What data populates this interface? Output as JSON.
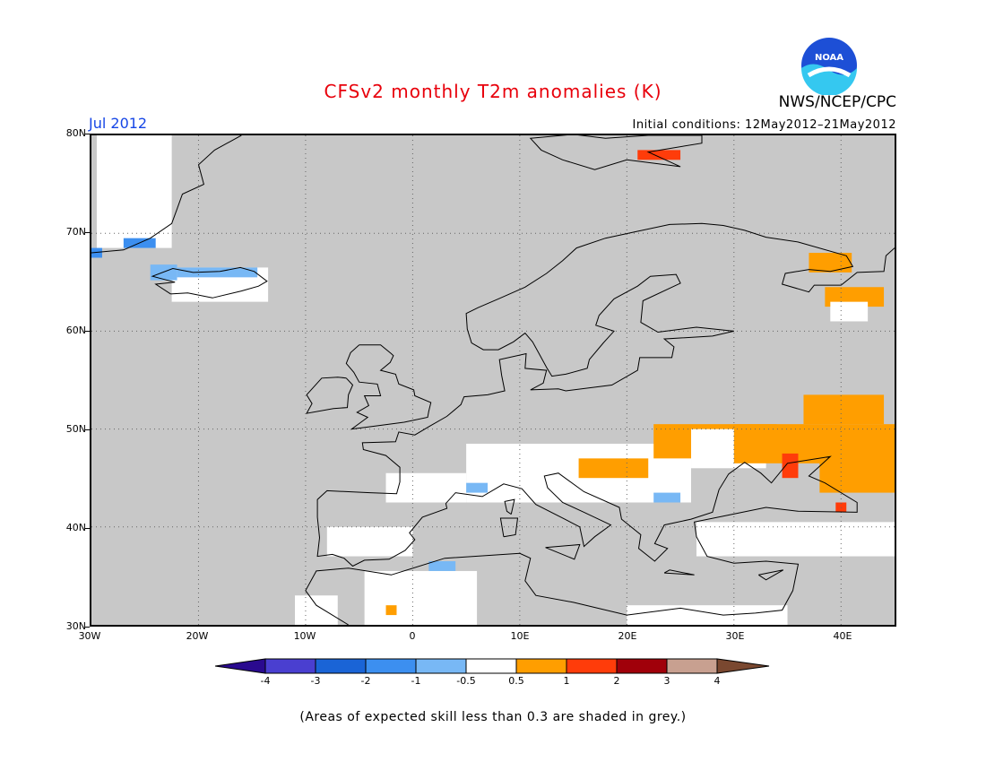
{
  "title": "CFSv2 monthly T2m anomalies (K)",
  "agency": "NWS/NCEP/CPC",
  "logo_text": "NOAA",
  "period": "Jul 2012",
  "initial_conditions": "Initial conditions: 12May2012–21May2012",
  "lat_labels": [
    "80N",
    "70N",
    "60N",
    "50N",
    "40N",
    "30N"
  ],
  "lon_labels": [
    "30W",
    "20W",
    "10W",
    "0",
    "10E",
    "20E",
    "30E",
    "40E"
  ],
  "colorbar": {
    "labels": [
      "-4",
      "-3",
      "-2",
      "-1",
      "-0.5",
      "0.5",
      "1",
      "2",
      "3",
      "4"
    ],
    "colors": [
      "#2a0a8f",
      "#4a3fd0",
      "#1a64d6",
      "#3c8ff0",
      "#78b8f5",
      "#ffffff",
      "#ff9e00",
      "#ff3c0a",
      "#a0000a",
      "#c8a090",
      "#7a4830"
    ]
  },
  "footnote": "(Areas of expected skill less than 0.3 are shaded in grey.)",
  "colors": {
    "skill_grey": "#c8c8c8",
    "neutral": "#ffffff",
    "warm1": "#ff9e00",
    "warm2": "#ff3c0a",
    "cool1": "#78b8f5",
    "cool2": "#3c8ff0"
  },
  "map_extent": {
    "lon": [
      -30,
      45
    ],
    "lat": [
      30,
      80
    ]
  },
  "anomaly_regions": [
    {
      "category": "neutral",
      "lon": [
        -22.5,
        -13.5
      ],
      "lat": [
        63.0,
        66.5
      ]
    },
    {
      "category": "cool1",
      "lon": [
        -22.0,
        -14.5
      ],
      "lat": [
        65.5,
        66.5
      ]
    },
    {
      "category": "cool1",
      "lon": [
        -24.5,
        -22.0
      ],
      "lat": [
        65.2,
        66.8
      ]
    },
    {
      "category": "neutral",
      "lon": [
        -29.5,
        -22.5
      ],
      "lat": [
        68.5,
        80.0
      ]
    },
    {
      "category": "cool2",
      "lon": [
        -27.0,
        -24.0
      ],
      "lat": [
        68.5,
        69.5
      ]
    },
    {
      "category": "cool2",
      "lon": [
        -30.0,
        -29.0
      ],
      "lat": [
        67.5,
        68.5
      ]
    },
    {
      "category": "warm2",
      "lon": [
        21.0,
        25.0
      ],
      "lat": [
        77.5,
        78.5
      ]
    },
    {
      "category": "warm1",
      "lon": [
        37.0,
        41.0
      ],
      "lat": [
        66.0,
        68.0
      ]
    },
    {
      "category": "warm1",
      "lon": [
        38.5,
        44.0
      ],
      "lat": [
        62.5,
        64.5
      ]
    },
    {
      "category": "neutral",
      "lon": [
        39.0,
        42.5
      ],
      "lat": [
        61.0,
        63.0
      ]
    },
    {
      "category": "neutral",
      "lon": [
        5.0,
        26.0
      ],
      "lat": [
        42.5,
        48.5
      ]
    },
    {
      "category": "neutral",
      "lon": [
        -2.5,
        5.0
      ],
      "lat": [
        42.5,
        45.5
      ]
    },
    {
      "category": "warm1",
      "lon": [
        15.5,
        22.0
      ],
      "lat": [
        45.0,
        47.0
      ]
    },
    {
      "category": "warm1",
      "lon": [
        22.5,
        34.0
      ],
      "lat": [
        47.0,
        50.5
      ]
    },
    {
      "category": "neutral",
      "lon": [
        26.0,
        33.0
      ],
      "lat": [
        46.0,
        50.0
      ]
    },
    {
      "category": "warm1",
      "lon": [
        30.0,
        45.0
      ],
      "lat": [
        46.5,
        50.5
      ]
    },
    {
      "category": "warm1",
      "lon": [
        36.5,
        44.0
      ],
      "lat": [
        50.5,
        53.5
      ]
    },
    {
      "category": "warm1",
      "lon": [
        38.0,
        45.0
      ],
      "lat": [
        43.5,
        47.5
      ]
    },
    {
      "category": "warm2",
      "lon": [
        34.5,
        36.0
      ],
      "lat": [
        45.0,
        47.5
      ]
    },
    {
      "category": "warm2",
      "lon": [
        39.5,
        40.5
      ],
      "lat": [
        41.5,
        42.5
      ]
    },
    {
      "category": "cool1",
      "lon": [
        22.5,
        25.0
      ],
      "lat": [
        42.5,
        43.5
      ]
    },
    {
      "category": "cool1",
      "lon": [
        5.0,
        7.0
      ],
      "lat": [
        43.5,
        44.5
      ]
    },
    {
      "category": "neutral",
      "lon": [
        -4.5,
        6.0
      ],
      "lat": [
        30.0,
        35.5
      ]
    },
    {
      "category": "cool1",
      "lon": [
        1.5,
        4.0
      ],
      "lat": [
        35.5,
        36.5
      ]
    },
    {
      "category": "warm1",
      "lon": [
        -2.5,
        -1.5
      ],
      "lat": [
        31.0,
        32.0
      ]
    },
    {
      "category": "neutral",
      "lon": [
        -11.0,
        -7.0
      ],
      "lat": [
        30.0,
        33.0
      ]
    },
    {
      "category": "neutral",
      "lon": [
        -8.0,
        0.0
      ],
      "lat": [
        37.0,
        40.0
      ]
    },
    {
      "category": "neutral",
      "lon": [
        26.5,
        45.0
      ],
      "lat": [
        37.0,
        40.5
      ]
    },
    {
      "category": "neutral",
      "lon": [
        20.0,
        35.0
      ],
      "lat": [
        30.0,
        32.0
      ]
    }
  ],
  "coastlines": [
    [
      [
        -6,
        30
      ],
      [
        -9,
        32
      ],
      [
        -10,
        33.5
      ],
      [
        -9,
        35.5
      ],
      [
        -6,
        35.8
      ],
      [
        -2,
        35.1
      ],
      [
        3,
        36.8
      ],
      [
        10,
        37.3
      ],
      [
        11,
        36.8
      ],
      [
        10.5,
        34.5
      ],
      [
        11.5,
        33
      ],
      [
        15,
        32.3
      ],
      [
        20,
        31
      ],
      [
        25,
        31.7
      ],
      [
        29,
        31
      ],
      [
        32,
        31.2
      ],
      [
        34.5,
        31.5
      ],
      [
        35.5,
        33.5
      ],
      [
        36,
        36.2
      ],
      [
        33,
        36.5
      ],
      [
        30,
        36.3
      ],
      [
        27.5,
        37
      ],
      [
        26.5,
        39
      ],
      [
        26.3,
        40.5
      ],
      [
        29,
        41.1
      ],
      [
        33,
        42
      ],
      [
        36,
        41.6
      ],
      [
        41.5,
        41.5
      ],
      [
        41.5,
        42.5
      ],
      [
        38.5,
        44.5
      ],
      [
        37,
        45.2
      ],
      [
        39,
        47.2
      ],
      [
        35,
        46.5
      ],
      [
        33.5,
        44.5
      ],
      [
        32.5,
        45.5
      ],
      [
        31,
        46.6
      ],
      [
        29.5,
        45.4
      ],
      [
        28.6,
        43.8
      ],
      [
        28,
        41.5
      ],
      [
        26,
        40.8
      ],
      [
        23.5,
        40.2
      ],
      [
        22.6,
        38.3
      ],
      [
        23.8,
        37.8
      ],
      [
        22.6,
        36.5
      ],
      [
        21.1,
        37.8
      ],
      [
        21.3,
        39.2
      ],
      [
        19.5,
        40.8
      ],
      [
        19.3,
        42
      ],
      [
        16,
        43.6
      ],
      [
        13.6,
        45.5
      ],
      [
        12.3,
        45.2
      ],
      [
        12.6,
        44
      ],
      [
        14,
        42.5
      ],
      [
        16,
        41.5
      ],
      [
        18.5,
        40.2
      ],
      [
        17,
        39
      ],
      [
        16,
        38
      ],
      [
        15.6,
        40
      ],
      [
        14.2,
        40.8
      ],
      [
        11.5,
        42.3
      ],
      [
        10.2,
        43.9
      ],
      [
        8.5,
        44.4
      ],
      [
        6.5,
        43.1
      ],
      [
        4,
        43.5
      ],
      [
        3.1,
        42.4
      ],
      [
        3.2,
        41.9
      ],
      [
        0.9,
        41
      ],
      [
        -0.3,
        39.4
      ],
      [
        0.2,
        38.7
      ],
      [
        -0.7,
        37.6
      ],
      [
        -2.2,
        36.7
      ],
      [
        -4.5,
        36.6
      ],
      [
        -5.6,
        36
      ],
      [
        -6.4,
        36.8
      ],
      [
        -7.5,
        37.2
      ],
      [
        -8.9,
        37
      ],
      [
        -8.7,
        38.9
      ],
      [
        -8.9,
        41
      ],
      [
        -8.9,
        42.8
      ],
      [
        -8,
        43.7
      ],
      [
        -4,
        43.5
      ],
      [
        -1.5,
        43.4
      ],
      [
        -1.2,
        44.6
      ],
      [
        -1.2,
        46.1
      ],
      [
        -2.5,
        47.3
      ],
      [
        -4.6,
        47.9
      ],
      [
        -4.7,
        48.6
      ],
      [
        -1.6,
        48.7
      ],
      [
        -1.3,
        49.7
      ],
      [
        0.2,
        49.4
      ],
      [
        1.6,
        50.3
      ],
      [
        3.2,
        51.3
      ],
      [
        4.5,
        52.5
      ],
      [
        4.8,
        53.3
      ],
      [
        7,
        53.5
      ],
      [
        8.6,
        53.9
      ],
      [
        8.3,
        55.5
      ],
      [
        8.1,
        57.1
      ],
      [
        10.6,
        57.7
      ],
      [
        10.5,
        56.2
      ],
      [
        12.5,
        56
      ],
      [
        12.2,
        54.7
      ],
      [
        11,
        54
      ],
      [
        13.6,
        54.1
      ],
      [
        14.3,
        53.9
      ],
      [
        18.6,
        54.5
      ],
      [
        21,
        56
      ],
      [
        21.2,
        57.3
      ],
      [
        24.2,
        57.3
      ],
      [
        24.4,
        58.4
      ],
      [
        23.5,
        59.2
      ],
      [
        28,
        59.5
      ],
      [
        30,
        60
      ],
      [
        26.5,
        60.4
      ],
      [
        22.9,
        59.9
      ],
      [
        21.3,
        60.9
      ],
      [
        21.5,
        63.1
      ],
      [
        25,
        64.9
      ],
      [
        24.6,
        65.8
      ],
      [
        22.2,
        65.6
      ],
      [
        21,
        64.6
      ],
      [
        18.8,
        63.3
      ],
      [
        17.4,
        61.6
      ],
      [
        17.1,
        60.6
      ],
      [
        18.8,
        60
      ],
      [
        17.8,
        58.8
      ],
      [
        16.5,
        57.1
      ],
      [
        16.3,
        56.2
      ],
      [
        14.3,
        55.6
      ],
      [
        13,
        55.4
      ],
      [
        12.5,
        56.3
      ],
      [
        11.8,
        57.7
      ],
      [
        11.2,
        58.9
      ],
      [
        10.5,
        59.8
      ],
      [
        9.4,
        58.9
      ],
      [
        8,
        58.1
      ],
      [
        6.6,
        58.1
      ],
      [
        5.5,
        58.8
      ],
      [
        5.1,
        60.2
      ],
      [
        5,
        61.8
      ],
      [
        6.1,
        62.4
      ],
      [
        8,
        63.3
      ],
      [
        10.5,
        64.5
      ],
      [
        12.5,
        65.9
      ],
      [
        14,
        67.2
      ],
      [
        15.3,
        68.5
      ],
      [
        18,
        69.5
      ],
      [
        21,
        70.2
      ],
      [
        24,
        70.9
      ],
      [
        27,
        71
      ],
      [
        29,
        70.8
      ],
      [
        31,
        70.3
      ],
      [
        33,
        69.6
      ],
      [
        36,
        69.1
      ],
      [
        40.5,
        67.7
      ],
      [
        41.1,
        66.6
      ],
      [
        39,
        66.1
      ],
      [
        37,
        66.3
      ],
      [
        34.8,
        65.9
      ],
      [
        34.5,
        64.8
      ],
      [
        37,
        64
      ],
      [
        37.5,
        64.7
      ],
      [
        40,
        64.7
      ],
      [
        41.5,
        66
      ],
      [
        44,
        66.1
      ],
      [
        44.2,
        67.7
      ],
      [
        45,
        68.5
      ]
    ],
    [
      [
        -5,
        58.6
      ],
      [
        -3,
        58.6
      ],
      [
        -2,
        57.7
      ],
      [
        -1.8,
        57.5
      ],
      [
        -2.1,
        56.8
      ],
      [
        -3,
        56
      ],
      [
        -1.6,
        55.6
      ],
      [
        -1.3,
        54.6
      ],
      [
        0.1,
        54
      ],
      [
        0.2,
        53.4
      ],
      [
        1.7,
        52.7
      ],
      [
        1.5,
        51.8
      ],
      [
        1.4,
        51.2
      ],
      [
        -0.8,
        50.7
      ],
      [
        -3.5,
        50.3
      ],
      [
        -5.7,
        50
      ],
      [
        -4.2,
        51.2
      ],
      [
        -5.2,
        51.7
      ],
      [
        -4.1,
        52.4
      ],
      [
        -4.5,
        53.4
      ],
      [
        -3,
        53.4
      ],
      [
        -3.3,
        54.6
      ],
      [
        -5,
        54.8
      ],
      [
        -5.5,
        55.8
      ],
      [
        -6.2,
        56.7
      ],
      [
        -5.8,
        57.8
      ],
      [
        -5,
        58.6
      ]
    ],
    [
      [
        -6.2,
        55.2
      ],
      [
        -5.6,
        54.5
      ],
      [
        -6,
        53.5
      ],
      [
        -6.1,
        52.2
      ],
      [
        -7.4,
        52.1
      ],
      [
        -9.9,
        51.6
      ],
      [
        -9.4,
        52.6
      ],
      [
        -9.9,
        53.5
      ],
      [
        -8.5,
        55.2
      ],
      [
        -7,
        55.3
      ],
      [
        -6.2,
        55.2
      ]
    ],
    [
      [
        -22.6,
        63.8
      ],
      [
        -21,
        63.9
      ],
      [
        -18.7,
        63.4
      ],
      [
        -16,
        64.1
      ],
      [
        -14.4,
        64.6
      ],
      [
        -13.6,
        65.1
      ],
      [
        -14.8,
        66.1
      ],
      [
        -16.1,
        66.5
      ],
      [
        -18,
        66.1
      ],
      [
        -20.5,
        66
      ],
      [
        -22.4,
        66.4
      ],
      [
        -24.3,
        65.6
      ],
      [
        -22.2,
        65
      ],
      [
        -24,
        64.8
      ],
      [
        -22.6,
        63.8
      ]
    ],
    [
      [
        15,
        80.1
      ],
      [
        18,
        79.7
      ],
      [
        22,
        80.0
      ],
      [
        27,
        80.0
      ],
      [
        27,
        79.2
      ],
      [
        22,
        78.3
      ],
      [
        25,
        76.8
      ],
      [
        20,
        77.5
      ],
      [
        17,
        76.5
      ],
      [
        14,
        77.5
      ],
      [
        12,
        78.5
      ],
      [
        11,
        79.7
      ],
      [
        15,
        80.1
      ]
    ],
    [
      [
        -30,
        68.0
      ],
      [
        -27,
        68.3
      ],
      [
        -24.5,
        69.5
      ],
      [
        -22.5,
        71
      ],
      [
        -22,
        72.5
      ],
      [
        -21.5,
        74
      ],
      [
        -19.5,
        75
      ],
      [
        -20,
        77
      ],
      [
        -18.5,
        78.5
      ],
      [
        -16,
        80.0
      ]
    ],
    [
      [
        9.2,
        41.3
      ],
      [
        9.5,
        42.8
      ],
      [
        8.6,
        42.6
      ],
      [
        8.8,
        41.6
      ],
      [
        9.2,
        41.3
      ]
    ],
    [
      [
        8.5,
        39
      ],
      [
        9.6,
        39.2
      ],
      [
        9.8,
        40.9
      ],
      [
        8.2,
        40.9
      ],
      [
        8.5,
        39
      ]
    ],
    [
      [
        12.4,
        37.9
      ],
      [
        15.6,
        38.2
      ],
      [
        15.1,
        36.7
      ],
      [
        12.4,
        37.9
      ]
    ],
    [
      [
        23.5,
        35.3
      ],
      [
        26.3,
        35.1
      ],
      [
        24,
        35.6
      ],
      [
        23.5,
        35.3
      ]
    ],
    [
      [
        32.3,
        35.1
      ],
      [
        34.6,
        35.6
      ],
      [
        33,
        34.6
      ],
      [
        32.3,
        35.1
      ]
    ]
  ]
}
